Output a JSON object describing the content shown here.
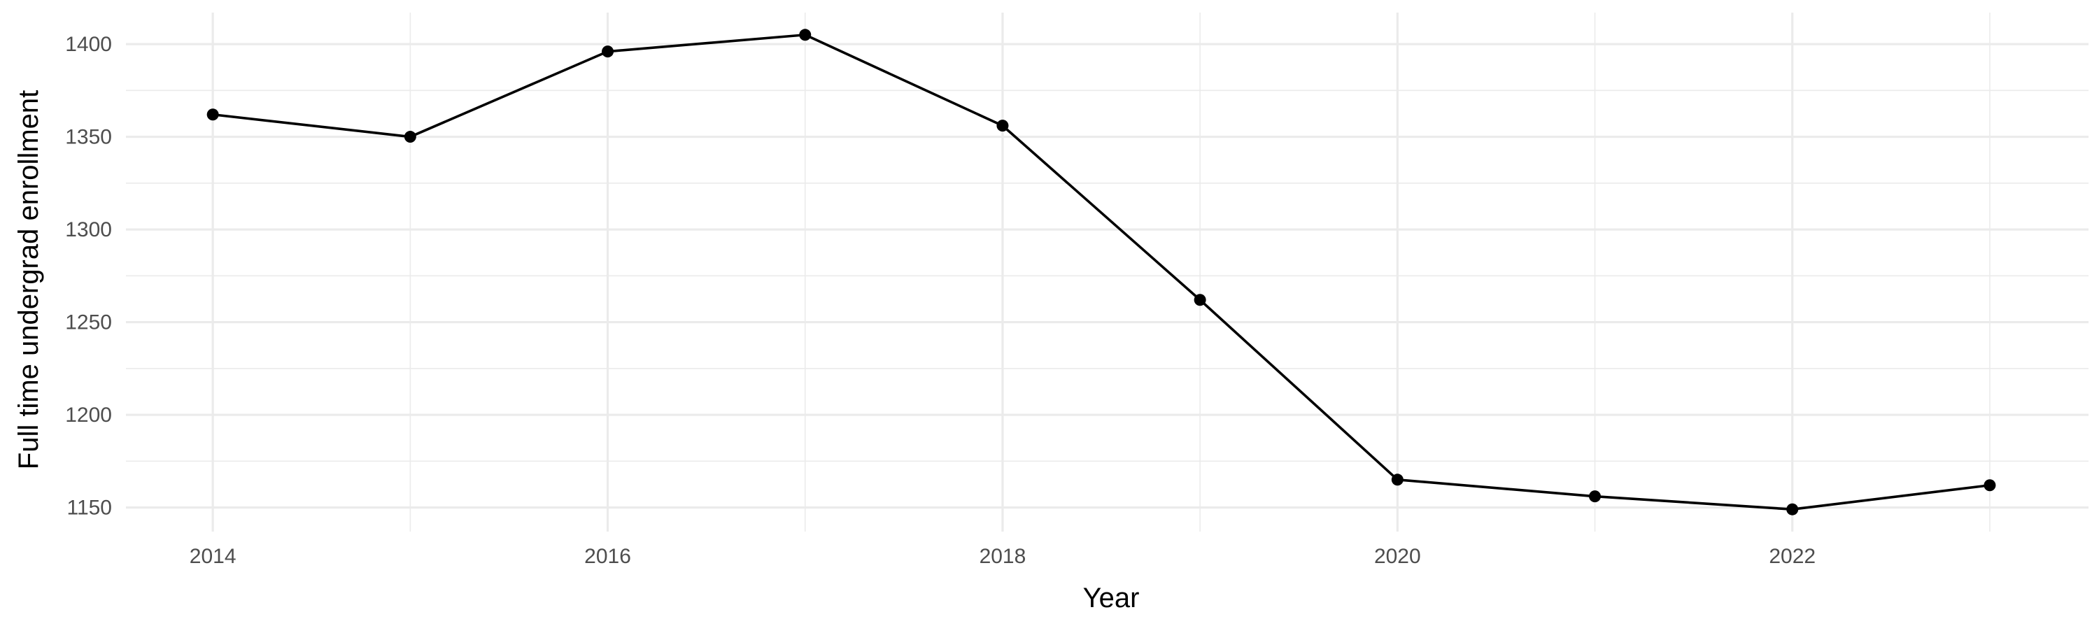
{
  "chart_data": {
    "type": "line",
    "title": "",
    "xlabel": "Year",
    "ylabel": "Full time undergrad enrollment",
    "xlim": [
      2013.56,
      2023.5
    ],
    "ylim": [
      1137,
      1417
    ],
    "x_ticks": [
      2014,
      2016,
      2018,
      2020,
      2022
    ],
    "x_minor": [
      2015,
      2017,
      2019,
      2021,
      2023
    ],
    "y_ticks": [
      1150,
      1200,
      1250,
      1300,
      1350,
      1400
    ],
    "y_minor": [
      1175,
      1225,
      1275,
      1325,
      1375
    ],
    "grid": true,
    "series": [
      {
        "x": [
          2014,
          2015,
          2016,
          2017,
          2018,
          2019,
          2020,
          2021,
          2022,
          2023
        ],
        "y": [
          1362,
          1350,
          1396,
          1405,
          1356,
          1262,
          1165,
          1156,
          1149,
          1162
        ]
      }
    ],
    "colors": {
      "line": "#000000",
      "point": "#000000",
      "grid": "#ebebeb",
      "tick_text": "#4d4d4d"
    }
  }
}
